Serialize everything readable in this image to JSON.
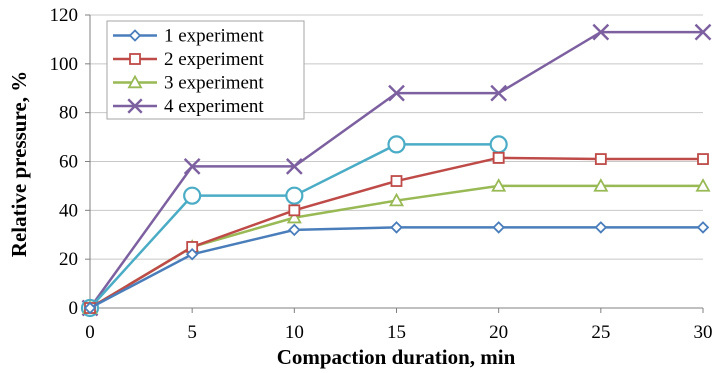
{
  "chart_data": {
    "type": "line",
    "title": "",
    "xlabel": "Compaction duration, min",
    "ylabel": "Relative pressure, %",
    "xlim": [
      0,
      30
    ],
    "ylim": [
      0,
      120
    ],
    "x_ticks": [
      0,
      5,
      10,
      15,
      20,
      25,
      30
    ],
    "y_ticks": [
      0,
      20,
      40,
      60,
      80,
      100,
      120
    ],
    "grid": "horizontal",
    "legend_position": "top-left",
    "series": [
      {
        "name": "1 experiment",
        "color": "#4a7ebb",
        "marker": "diamond",
        "x": [
          0,
          5,
          10,
          15,
          20,
          25,
          30
        ],
        "y": [
          0,
          22,
          32,
          33,
          33,
          33,
          33
        ]
      },
      {
        "name": "2 experiment",
        "color": "#be4b48",
        "marker": "square",
        "x": [
          0,
          5,
          10,
          15,
          20
        ],
        "y": [
          0,
          25,
          40,
          52,
          61.5
        ]
      },
      {
        "name": "3 experiment",
        "color": "#98b954",
        "marker": "triangle",
        "x": [
          0,
          5,
          10,
          15,
          20,
          25,
          30
        ],
        "y": [
          0,
          25,
          37,
          44,
          50,
          50,
          50
        ]
      },
      {
        "name": "4 experiment",
        "color": "#7d60a0",
        "marker": "x",
        "x": [
          0,
          5,
          10,
          15,
          20,
          25,
          30
        ],
        "y": [
          0,
          58,
          58,
          88,
          88,
          113,
          113
        ]
      },
      {
        "name": "",
        "color": "#4bacc6",
        "marker": "circle",
        "x": [
          0,
          5,
          10,
          15,
          20
        ],
        "y": [
          0,
          46,
          46,
          67,
          67
        ]
      },
      {
        "name": "",
        "color": "#be4b48",
        "marker": "square",
        "x": [
          20,
          25,
          30
        ],
        "y": [
          61.5,
          61,
          61
        ]
      }
    ]
  }
}
